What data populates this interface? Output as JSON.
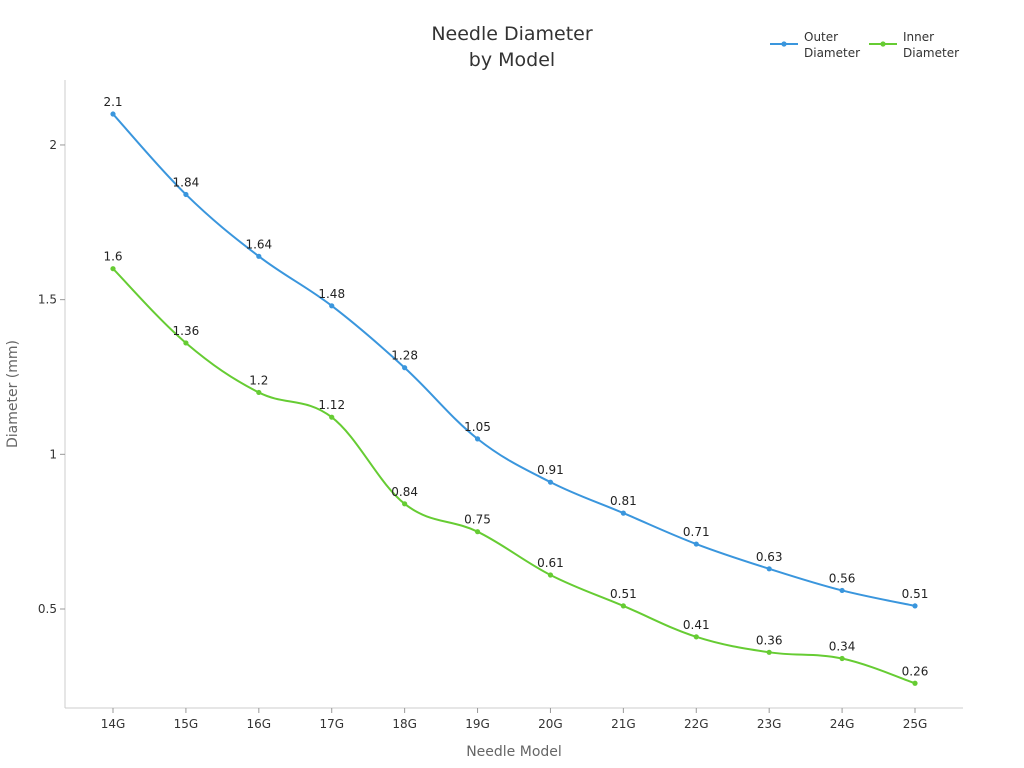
{
  "chart_data": {
    "type": "line",
    "title": [
      "Needle Diameter",
      "by Model"
    ],
    "xlabel": "Needle Model",
    "ylabel": "Diameter (mm)",
    "categories": [
      "14G",
      "15G",
      "16G",
      "17G",
      "18G",
      "19G",
      "20G",
      "21G",
      "22G",
      "23G",
      "24G",
      "25G"
    ],
    "ylim": [
      0.18,
      2.21
    ],
    "yticks": [
      0.5,
      1,
      1.5,
      2
    ],
    "ytick_labels": [
      "0.5",
      "1",
      "1.5",
      "2"
    ],
    "legend_position": "top-right",
    "grid": false,
    "series": [
      {
        "name": [
          "Outer",
          "Diameter"
        ],
        "color": "#3a96dd",
        "values": [
          2.1,
          1.84,
          1.64,
          1.48,
          1.28,
          1.05,
          0.91,
          0.81,
          0.71,
          0.63,
          0.56,
          0.51
        ],
        "labels": [
          "2.1",
          "1.84",
          "1.64",
          "1.48",
          "1.28",
          "1.05",
          "0.91",
          "0.81",
          "0.71",
          "0.63",
          "0.56",
          "0.51"
        ]
      },
      {
        "name": [
          "Inner",
          "Diameter"
        ],
        "color": "#66cc33",
        "values": [
          1.6,
          1.36,
          1.2,
          1.12,
          0.84,
          0.75,
          0.61,
          0.51,
          0.41,
          0.36,
          0.34,
          0.26
        ],
        "labels": [
          "1.6",
          "1.36",
          "1.2",
          "1.12",
          "0.84",
          "0.75",
          "0.61",
          "0.51",
          "0.41",
          "0.36",
          "0.34",
          "0.26"
        ]
      }
    ]
  }
}
